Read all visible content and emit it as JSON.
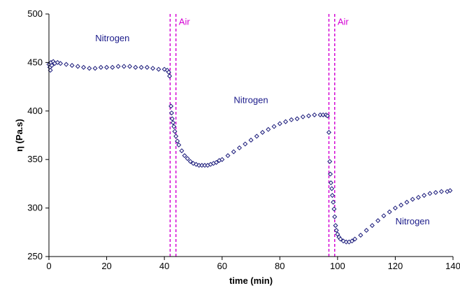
{
  "chart_data": {
    "type": "scatter",
    "xlabel": "time (min)",
    "ylabel": "η (Pa.s)",
    "xlim": [
      0,
      140
    ],
    "ylim": [
      250,
      500
    ],
    "xticks": [
      0,
      20,
      40,
      60,
      80,
      100,
      120,
      140
    ],
    "yticks": [
      250,
      300,
      350,
      400,
      450,
      500
    ],
    "grid": false,
    "marker": "diamond-open",
    "colors": {
      "marker": "#1a1a7a",
      "air_lines": "#d400d4",
      "nitrogen_text": "#1a1a8a",
      "air_text": "#d400d4"
    },
    "air_intervals": [
      [
        42,
        44
      ],
      [
        97,
        99
      ]
    ],
    "annotations": [
      {
        "text": "Nitrogen",
        "x": 22,
        "y": 472,
        "color": "#1a1a8a"
      },
      {
        "text": "Air",
        "x": 45,
        "y": 489,
        "color": "#d400d4"
      },
      {
        "text": "Nitrogen",
        "x": 70,
        "y": 408,
        "color": "#1a1a8a"
      },
      {
        "text": "Air",
        "x": 100,
        "y": 489,
        "color": "#d400d4"
      },
      {
        "text": "Nitrogen",
        "x": 126,
        "y": 283,
        "color": "#1a1a8a"
      }
    ],
    "series": [
      {
        "points": [
          [
            0,
            448
          ],
          [
            0.3,
            445
          ],
          [
            0.5,
            442
          ],
          [
            0.7,
            450
          ],
          [
            1,
            447
          ],
          [
            1.5,
            451
          ],
          [
            2,
            449
          ],
          [
            3,
            450
          ],
          [
            4,
            449
          ],
          [
            6,
            448
          ],
          [
            8,
            447
          ],
          [
            10,
            446
          ],
          [
            12,
            445
          ],
          [
            14,
            444
          ],
          [
            16,
            444
          ],
          [
            18,
            445
          ],
          [
            20,
            445
          ],
          [
            22,
            445
          ],
          [
            24,
            446
          ],
          [
            26,
            446
          ],
          [
            28,
            446
          ],
          [
            30,
            445
          ],
          [
            32,
            445
          ],
          [
            34,
            445
          ],
          [
            36,
            444
          ],
          [
            38,
            443
          ],
          [
            40,
            443
          ],
          [
            41,
            442
          ],
          [
            41.5,
            440
          ],
          [
            41.8,
            436
          ],
          [
            42.3,
            405
          ],
          [
            42.5,
            398
          ],
          [
            42.7,
            392
          ],
          [
            43,
            388
          ],
          [
            43.3,
            384
          ],
          [
            43.6,
            379
          ],
          [
            44,
            374
          ],
          [
            44.5,
            369
          ],
          [
            45,
            365
          ],
          [
            46,
            359
          ],
          [
            47,
            354
          ],
          [
            48,
            351
          ],
          [
            49,
            348
          ],
          [
            50,
            346
          ],
          [
            51,
            345
          ],
          [
            52,
            344
          ],
          [
            53,
            344
          ],
          [
            54,
            344
          ],
          [
            55,
            344
          ],
          [
            56,
            345
          ],
          [
            57,
            346
          ],
          [
            58,
            347
          ],
          [
            59,
            349
          ],
          [
            60,
            350
          ],
          [
            62,
            354
          ],
          [
            64,
            358
          ],
          [
            66,
            362
          ],
          [
            68,
            366
          ],
          [
            70,
            370
          ],
          [
            72,
            374
          ],
          [
            74,
            378
          ],
          [
            76,
            381
          ],
          [
            78,
            384
          ],
          [
            80,
            387
          ],
          [
            82,
            389
          ],
          [
            84,
            391
          ],
          [
            86,
            392
          ],
          [
            88,
            394
          ],
          [
            90,
            395
          ],
          [
            92,
            396
          ],
          [
            94,
            396
          ],
          [
            95,
            396
          ],
          [
            96,
            396
          ],
          [
            96.5,
            395
          ],
          [
            97,
            378
          ],
          [
            97.3,
            348
          ],
          [
            97.5,
            335
          ],
          [
            97.7,
            326
          ],
          [
            98,
            320
          ],
          [
            98.2,
            313
          ],
          [
            98.5,
            306
          ],
          [
            98.8,
            299
          ],
          [
            99,
            291
          ],
          [
            99.3,
            282
          ],
          [
            99.6,
            277
          ],
          [
            100,
            273
          ],
          [
            100.5,
            270
          ],
          [
            101,
            268
          ],
          [
            102,
            266
          ],
          [
            103,
            265
          ],
          [
            104,
            265
          ],
          [
            105,
            266
          ],
          [
            106,
            268
          ],
          [
            108,
            272
          ],
          [
            110,
            277
          ],
          [
            112,
            282
          ],
          [
            114,
            287
          ],
          [
            116,
            292
          ],
          [
            118,
            296
          ],
          [
            120,
            300
          ],
          [
            122,
            303
          ],
          [
            124,
            306
          ],
          [
            126,
            309
          ],
          [
            128,
            311
          ],
          [
            130,
            313
          ],
          [
            132,
            315
          ],
          [
            134,
            316
          ],
          [
            136,
            317
          ],
          [
            138,
            317
          ],
          [
            139,
            318
          ]
        ]
      }
    ]
  }
}
